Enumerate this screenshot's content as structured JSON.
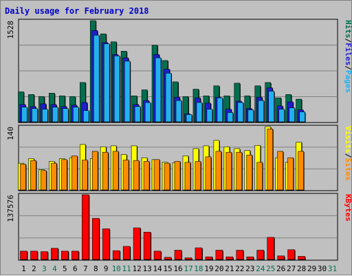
{
  "chart_data": {
    "type": "bar",
    "title": "Daily usage for February 2018",
    "days": [
      "1",
      "2",
      "3",
      "4",
      "5",
      "6",
      "7",
      "8",
      "9",
      "10",
      "11",
      "12",
      "13",
      "14",
      "15",
      "16",
      "17",
      "18",
      "19",
      "20",
      "21",
      "22",
      "23",
      "24",
      "25",
      "26",
      "27",
      "28",
      "29",
      "30",
      "31"
    ],
    "weekend_days": [
      "3",
      "4",
      "10",
      "11",
      "17",
      "18",
      "24",
      "25",
      "31"
    ],
    "grid": true,
    "panels": [
      {
        "id": "hits-files-pages",
        "axis_max_label": "1528",
        "ylim": [
          0,
          1528
        ],
        "label_parts": [
          "Hits",
          "/",
          "Files",
          "/",
          "Pages"
        ],
        "series": [
          {
            "name": "Hits",
            "color": "#006f4f",
            "values": [
              460,
              420,
              390,
              440,
              400,
              390,
              600,
              1528,
              1330,
              1210,
              1070,
              400,
              490,
              1160,
              930,
              610,
              390,
              500,
              400,
              550,
              400,
              590,
              400,
              550,
              600,
              370,
              420,
              350,
              0,
              0,
              0
            ]
          },
          {
            "name": "Files",
            "color": "#1f1fcf",
            "values": [
              270,
              240,
              280,
              270,
              240,
              260,
              300,
              1380,
              1200,
              1020,
              970,
              270,
              330,
              1020,
              800,
              380,
              130,
              370,
              290,
              380,
              200,
              320,
              210,
              380,
              520,
              250,
              310,
              190,
              0,
              0,
              0
            ]
          },
          {
            "name": "Pages",
            "color": "#23b0f0",
            "values": [
              230,
              210,
              200,
              230,
              210,
              230,
              180,
              1310,
              1180,
              1000,
              920,
              240,
              300,
              970,
              740,
              330,
              120,
              300,
              200,
              370,
              150,
              300,
              190,
              330,
              470,
              200,
              220,
              160,
              0,
              0,
              0
            ]
          }
        ]
      },
      {
        "id": "visits-sites",
        "axis_max_label": "140",
        "ylim": [
          0,
          140
        ],
        "label_parts": [
          "Visits",
          "/",
          "Sites"
        ],
        "series": [
          {
            "name": "Visits",
            "color": "#ffff00",
            "values": [
              60,
              70,
              46,
              64,
              70,
              72,
              101,
              70,
              96,
              98,
              79,
              98,
              72,
              68,
              62,
              61,
              76,
              92,
              98,
              110,
              96,
              92,
              88,
              99,
              140,
              72,
              62,
              106,
              0,
              0,
              0
            ]
          },
          {
            "name": "Sites",
            "color": "#ff8c00",
            "values": [
              58,
              66,
              44,
              60,
              68,
              76,
              67,
              86,
              84,
              86,
              67,
              66,
              64,
              68,
              60,
              64,
              62,
              64,
              74,
              86,
              84,
              84,
              78,
              62,
              135,
              86,
              72,
              86,
              0,
              0,
              0
            ]
          }
        ]
      },
      {
        "id": "kbytes",
        "axis_max_label": "137576",
        "ylim": [
          0,
          137576
        ],
        "label_parts": [
          "KBytes"
        ],
        "series": [
          {
            "name": "KBytes",
            "color": "#ff0000",
            "values": [
              19000,
              19000,
              18000,
              25000,
              19000,
              19000,
              137576,
              88000,
              66000,
              20000,
              29000,
              68000,
              59000,
              19000,
              6000,
              21000,
              5000,
              26000,
              7000,
              21000,
              7000,
              21000,
              7000,
              21000,
              48000,
              9000,
              22000,
              8000,
              0,
              0,
              0
            ]
          }
        ]
      }
    ]
  },
  "colors": {
    "title": "#0000cc",
    "weekday_label": "#000000",
    "weekend_label": "#006f4f",
    "panel_bg": "#c0c0c0",
    "grid": "#808080",
    "separator": "#000000"
  }
}
